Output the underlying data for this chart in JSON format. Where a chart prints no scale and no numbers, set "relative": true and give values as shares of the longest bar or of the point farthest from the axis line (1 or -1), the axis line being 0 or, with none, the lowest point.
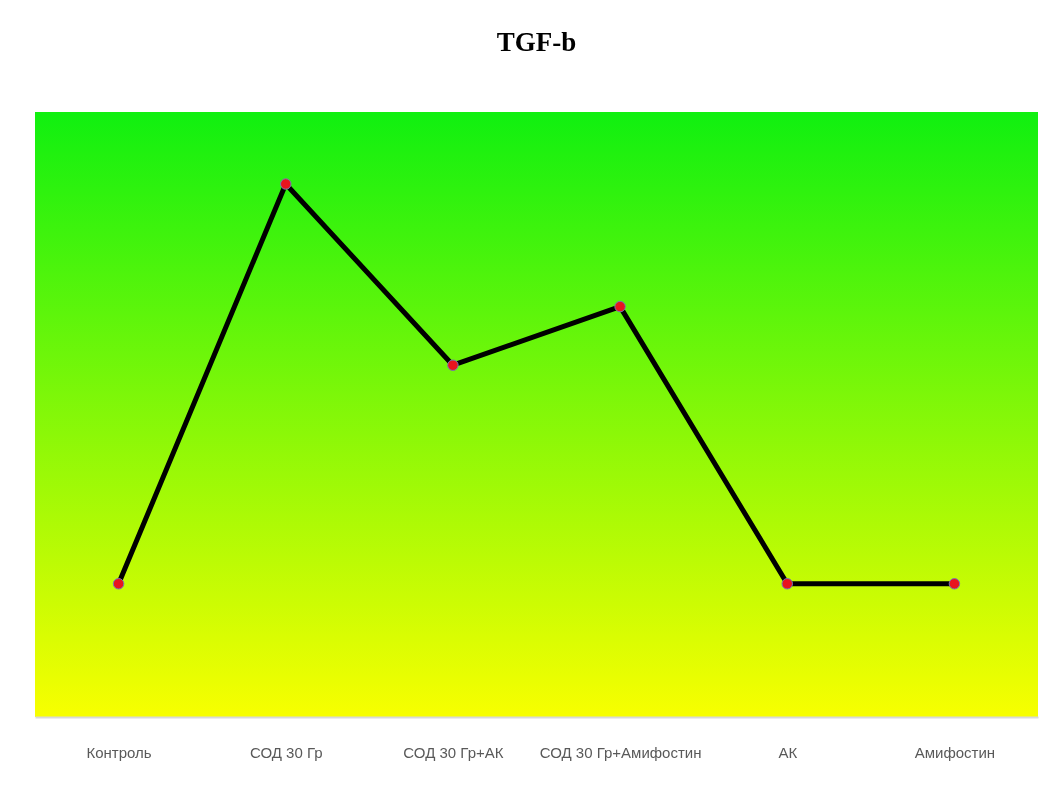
{
  "chart_data": {
    "type": "line",
    "title": "TGF-b",
    "categories": [
      "Контроль",
      "СОД 30 Гр",
      "СОД 30 Гр+АК",
      "СОД 30 Гр+Амифостин",
      "АК",
      "Амифостин"
    ],
    "series": [
      {
        "color": "#000000",
        "values": [
          0.25,
          1,
          0.66,
          0.77,
          0.25,
          0.25
        ]
      }
    ],
    "relative": true,
    "marker": "circle",
    "line_style": "solid"
  }
}
